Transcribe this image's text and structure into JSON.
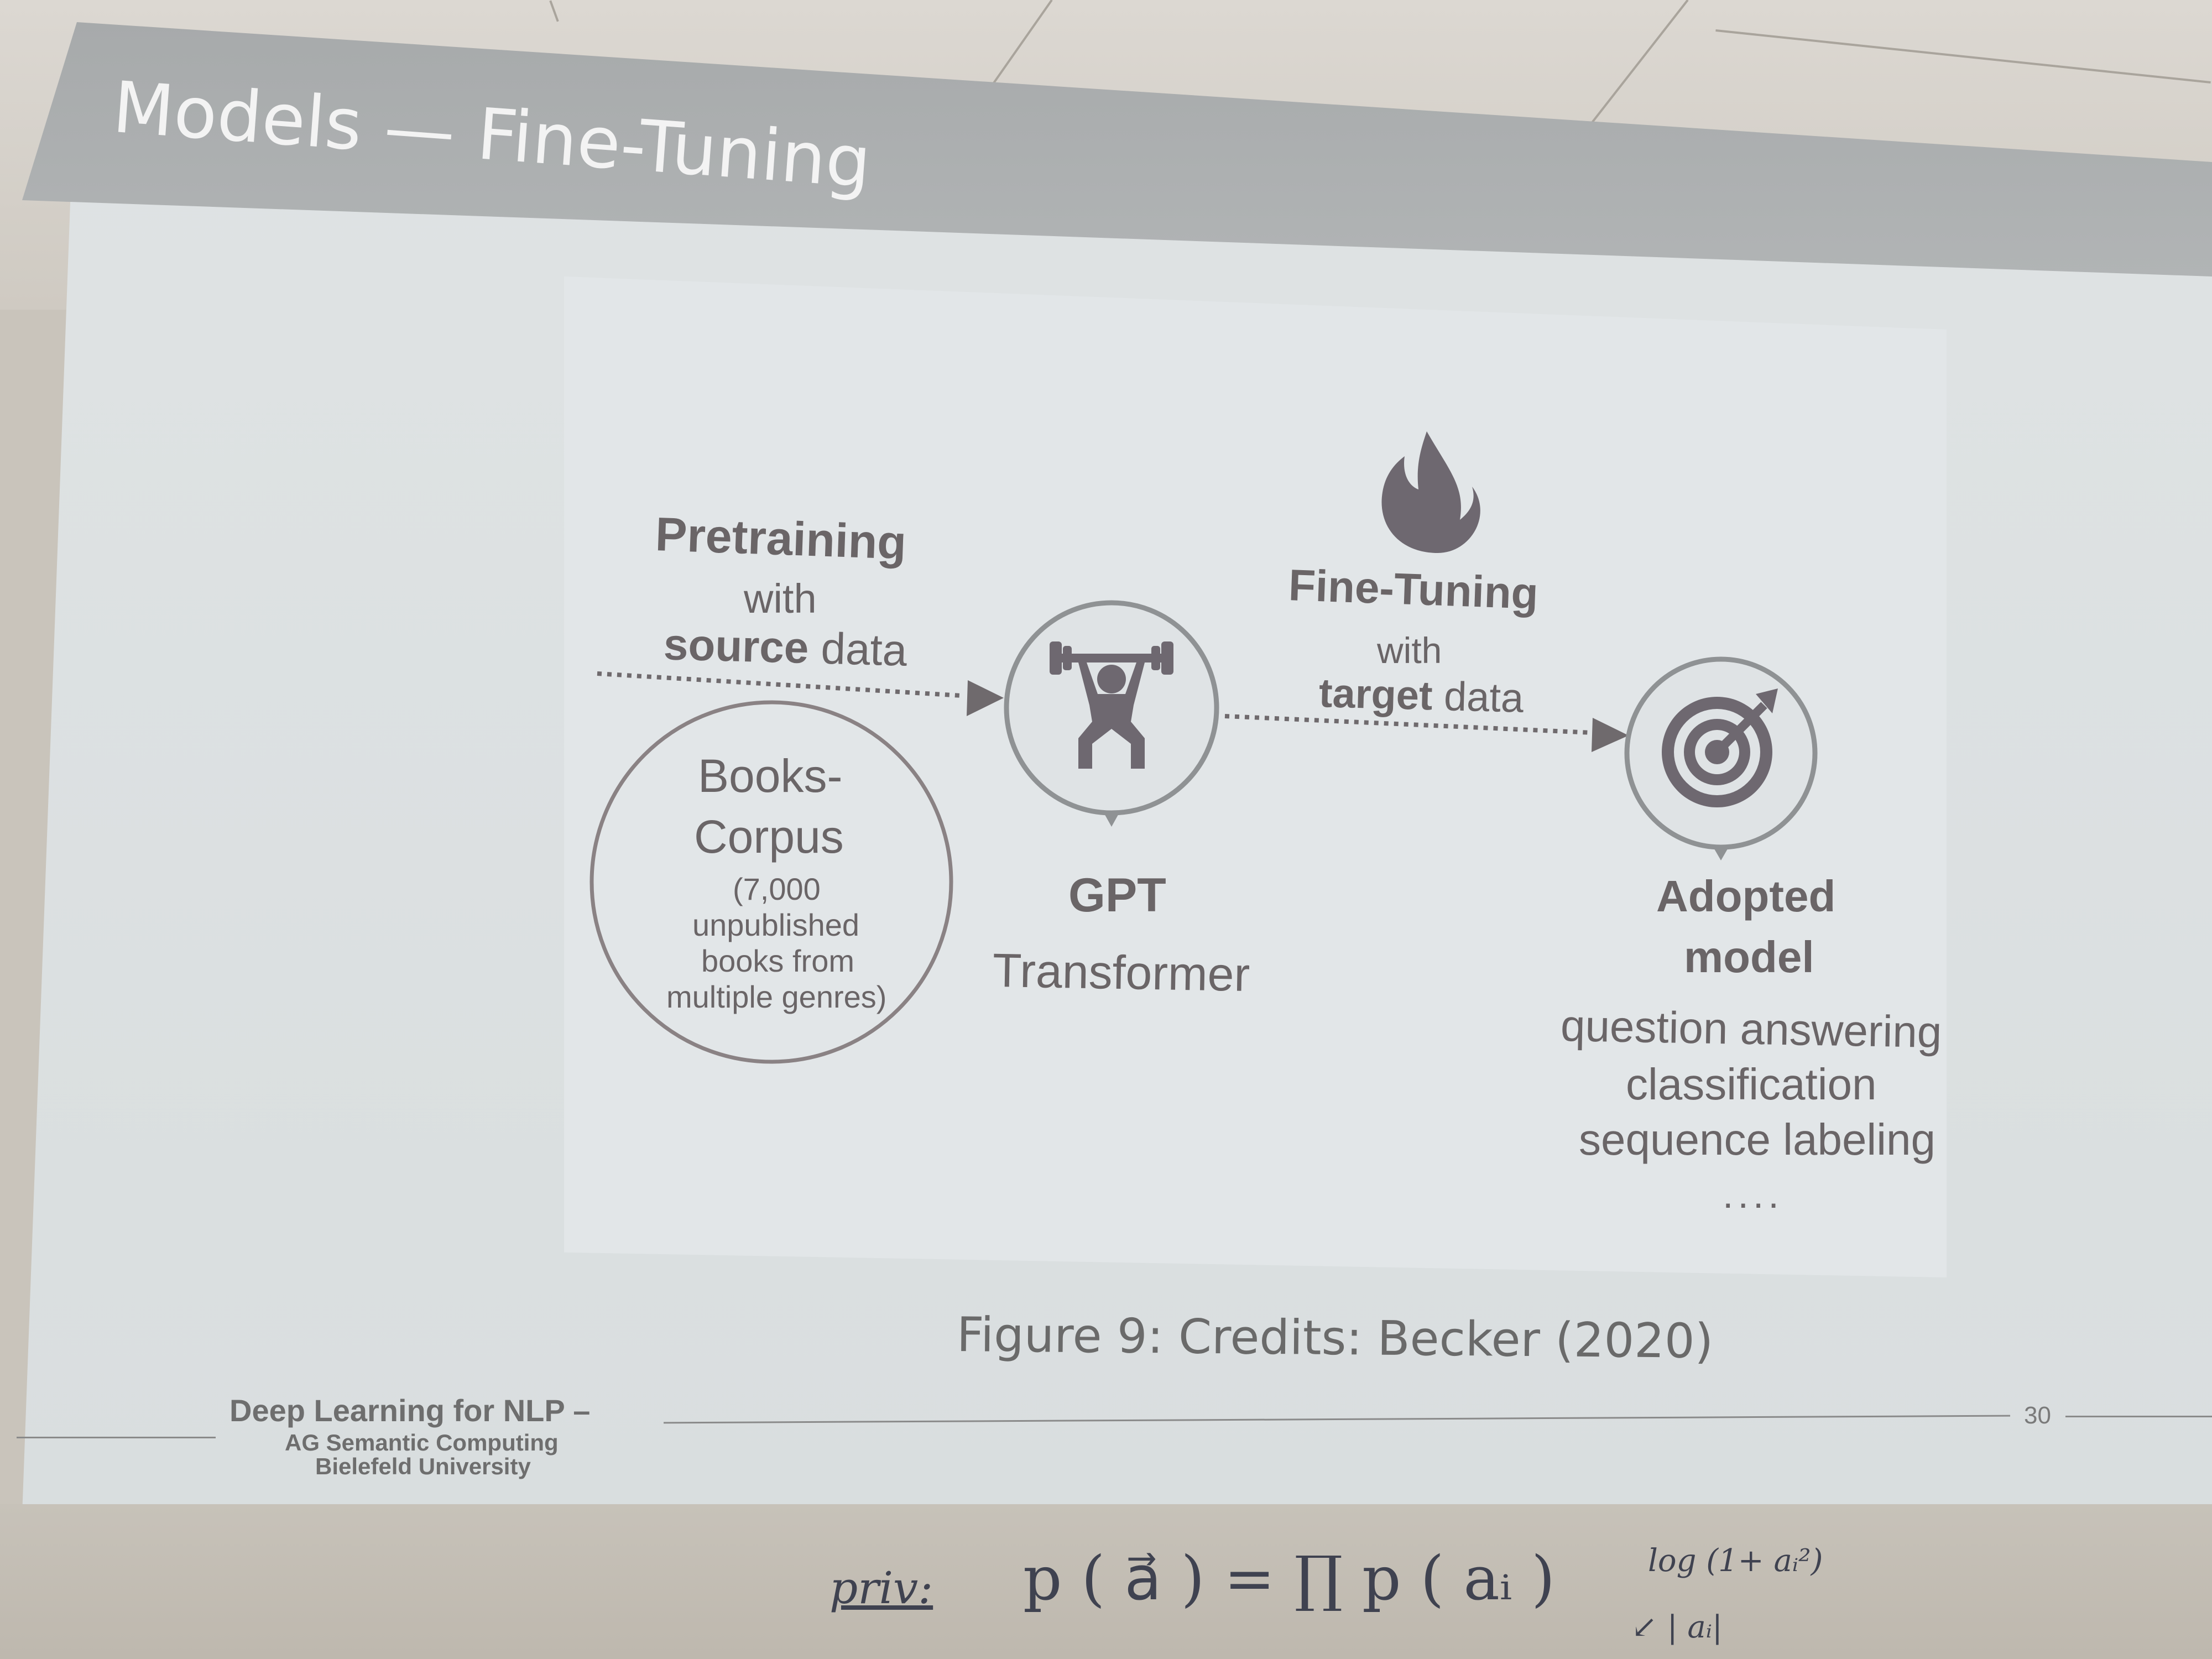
{
  "slide": {
    "title": "Models — Fine-Tuning",
    "caption": "Figure 9: Credits: Becker (2020)",
    "page_number": "30"
  },
  "figure": {
    "pretraining": {
      "heading": "Pretraining",
      "with": "with",
      "source_bold": "source",
      "source_rest": " data"
    },
    "corpus": {
      "line1": "Books-",
      "line2": "Corpus",
      "detail1": "(7,000",
      "detail2": "unpublished",
      "detail3": "books from",
      "detail4": "multiple genres)"
    },
    "gpt": {
      "name": "GPT",
      "subtitle": "Transformer",
      "icon": "weightlifter-icon"
    },
    "finetuning": {
      "heading": "Fine-Tuning",
      "with": "with",
      "target_bold": "target",
      "target_rest": " data",
      "icon": "flame-icon"
    },
    "adopted": {
      "line1": "Adopted",
      "line2": "model",
      "icon": "target-icon",
      "tasks": [
        "question answering",
        "classification",
        "sequence labeling",
        "...."
      ]
    }
  },
  "footer": {
    "line1": "Deep Learning for NLP –",
    "line2": "AG Semantic Computing",
    "line3": "Bielefeld University"
  },
  "whiteboard": {
    "prior_label": "priv:",
    "formula": "p ( a⃗ ) = ∏ p ( aᵢ )",
    "side_note": "log (1+ aᵢ²)",
    "side_note2": "↙ | aᵢ|"
  },
  "colors": {
    "icon": "#6e6870",
    "text": "#6a6567",
    "screen": "#dfe3e4",
    "header_band": "#a9acad"
  }
}
